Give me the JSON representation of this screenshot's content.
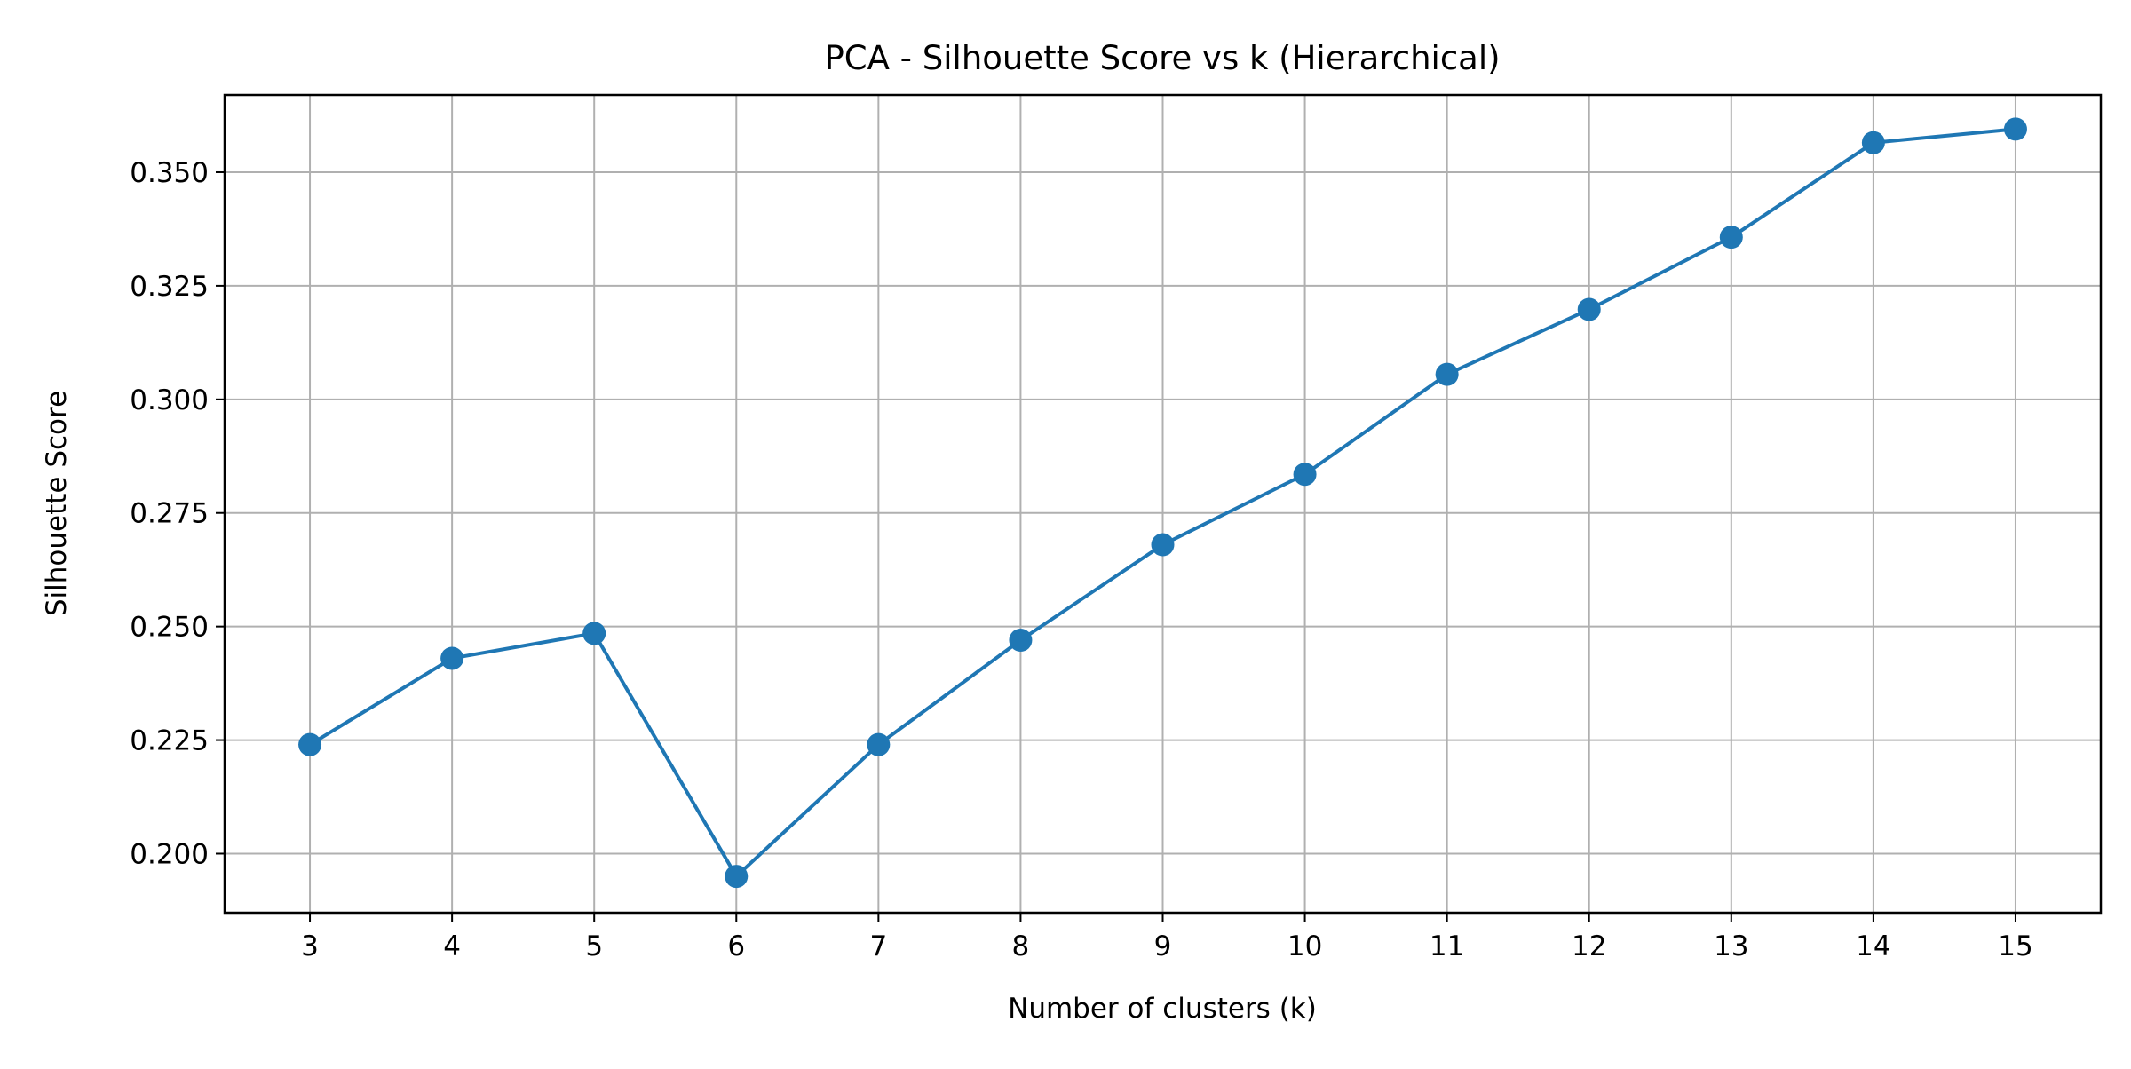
{
  "chart_data": {
    "type": "line",
    "title": "PCA - Silhouette Score vs k (Hierarchical)",
    "xlabel": "Number of clusters (k)",
    "ylabel": "Silhouette Score",
    "x": [
      3,
      4,
      5,
      6,
      7,
      8,
      9,
      10,
      11,
      12,
      13,
      14,
      15
    ],
    "x_tick_labels": [
      "3",
      "4",
      "5",
      "6",
      "7",
      "8",
      "9",
      "10",
      "11",
      "12",
      "13",
      "14",
      "15"
    ],
    "y_tick_labels": [
      "0.200",
      "0.225",
      "0.250",
      "0.275",
      "0.300",
      "0.325",
      "0.350"
    ],
    "y_ticks": [
      0.2,
      0.225,
      0.25,
      0.275,
      0.3,
      0.325,
      0.35
    ],
    "xlim": [
      2.4,
      15.6
    ],
    "ylim": [
      0.187,
      0.367
    ],
    "grid": true,
    "series": [
      {
        "values": [
          0.224,
          0.243,
          0.2485,
          0.195,
          0.224,
          0.247,
          0.268,
          0.2835,
          0.3055,
          0.3198,
          0.3357,
          0.3565,
          0.3595
        ],
        "color": "#1f77b4",
        "marker": "circle"
      }
    ]
  }
}
